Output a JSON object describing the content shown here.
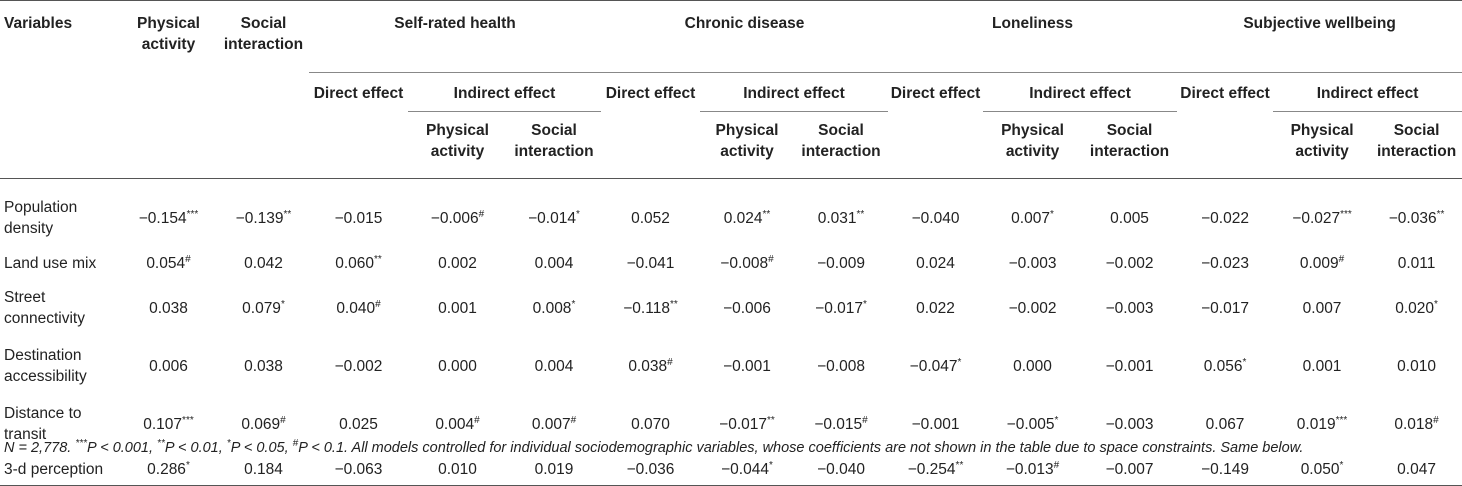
{
  "header": {
    "variables": "Variables",
    "physical_activity": [
      "Physical",
      "activity"
    ],
    "social_interaction": [
      "Social",
      "interaction"
    ],
    "outcomes": [
      "Self-rated health",
      "Chronic disease",
      "Loneliness",
      "Subjective wellbeing"
    ],
    "direct_effect": "Direct effect",
    "indirect_effect": "Indirect effect",
    "sub_physical": [
      "Physical",
      "activity"
    ],
    "sub_social": [
      "Social",
      "interaction"
    ]
  },
  "rows": [
    {
      "label": [
        "Population",
        "density"
      ],
      "cells": [
        [
          "−0.154",
          "***"
        ],
        [
          "−0.139",
          "**"
        ],
        [
          "−0.015",
          ""
        ],
        [
          "−0.006",
          "#"
        ],
        [
          "−0.014",
          "*"
        ],
        [
          "0.052",
          ""
        ],
        [
          "0.024",
          "**"
        ],
        [
          "0.031",
          "**"
        ],
        [
          "−0.040",
          ""
        ],
        [
          "0.007",
          "*"
        ],
        [
          "0.005",
          ""
        ],
        [
          "−0.022",
          ""
        ],
        [
          "−0.027",
          "***"
        ],
        [
          "−0.036",
          "**"
        ]
      ]
    },
    {
      "label": [
        "Land use mix"
      ],
      "cells": [
        [
          "0.054",
          "#"
        ],
        [
          "0.042",
          ""
        ],
        [
          "0.060",
          "**"
        ],
        [
          "0.002",
          ""
        ],
        [
          "0.004",
          ""
        ],
        [
          "−0.041",
          ""
        ],
        [
          "−0.008",
          "#"
        ],
        [
          "−0.009",
          ""
        ],
        [
          "0.024",
          ""
        ],
        [
          "−0.003",
          ""
        ],
        [
          "−0.002",
          ""
        ],
        [
          "−0.023",
          ""
        ],
        [
          "0.009",
          "#"
        ],
        [
          "0.011",
          ""
        ]
      ]
    },
    {
      "label": [
        "Street",
        "connectivity"
      ],
      "cells": [
        [
          "0.038",
          ""
        ],
        [
          "0.079",
          "*"
        ],
        [
          "0.040",
          "#"
        ],
        [
          "0.001",
          ""
        ],
        [
          "0.008",
          "*"
        ],
        [
          "−0.118",
          "**"
        ],
        [
          "−0.006",
          ""
        ],
        [
          "−0.017",
          "*"
        ],
        [
          "0.022",
          ""
        ],
        [
          "−0.002",
          ""
        ],
        [
          "−0.003",
          ""
        ],
        [
          "−0.017",
          ""
        ],
        [
          "0.007",
          ""
        ],
        [
          "0.020",
          "*"
        ]
      ]
    },
    {
      "label": [
        "Destination",
        "accessibility"
      ],
      "cells": [
        [
          "0.006",
          ""
        ],
        [
          "0.038",
          ""
        ],
        [
          "−0.002",
          ""
        ],
        [
          "0.000",
          ""
        ],
        [
          "0.004",
          ""
        ],
        [
          "0.038",
          "#"
        ],
        [
          "−0.001",
          ""
        ],
        [
          "−0.008",
          ""
        ],
        [
          "−0.047",
          "*"
        ],
        [
          "0.000",
          ""
        ],
        [
          "−0.001",
          ""
        ],
        [
          "0.056",
          "*"
        ],
        [
          "0.001",
          ""
        ],
        [
          "0.010",
          ""
        ]
      ]
    },
    {
      "label": [
        "Distance to",
        "transit"
      ],
      "cells": [
        [
          "0.107",
          "***"
        ],
        [
          "0.069",
          "#"
        ],
        [
          "0.025",
          ""
        ],
        [
          "0.004",
          "#"
        ],
        [
          "0.007",
          "#"
        ],
        [
          "0.070",
          ""
        ],
        [
          "−0.017",
          "**"
        ],
        [
          "−0.015",
          "#"
        ],
        [
          "−0.001",
          ""
        ],
        [
          "−0.005",
          "*"
        ],
        [
          "−0.003",
          ""
        ],
        [
          "0.067",
          ""
        ],
        [
          "0.019",
          "***"
        ],
        [
          "0.018",
          "#"
        ]
      ]
    },
    {
      "label": [
        "3-d perception"
      ],
      "cells": [
        [
          "0.286",
          "*"
        ],
        [
          "0.184",
          ""
        ],
        [
          "−0.063",
          ""
        ],
        [
          "0.010",
          ""
        ],
        [
          "0.019",
          ""
        ],
        [
          "−0.036",
          ""
        ],
        [
          "−0.044",
          "*"
        ],
        [
          "−0.040",
          ""
        ],
        [
          "−0.254",
          "**"
        ],
        [
          "−0.013",
          "#"
        ],
        [
          "−0.007",
          ""
        ],
        [
          "−0.149",
          ""
        ],
        [
          "0.050",
          "*"
        ],
        [
          "0.047",
          ""
        ]
      ]
    }
  ],
  "note": "N = 2,778. ***P < 0.001, **P < 0.01, *P < 0.05, #P < 0.1. All models controlled for individual sociodemographic variables, whose coefficients are not shown in the table due to space constraints. Same below."
}
